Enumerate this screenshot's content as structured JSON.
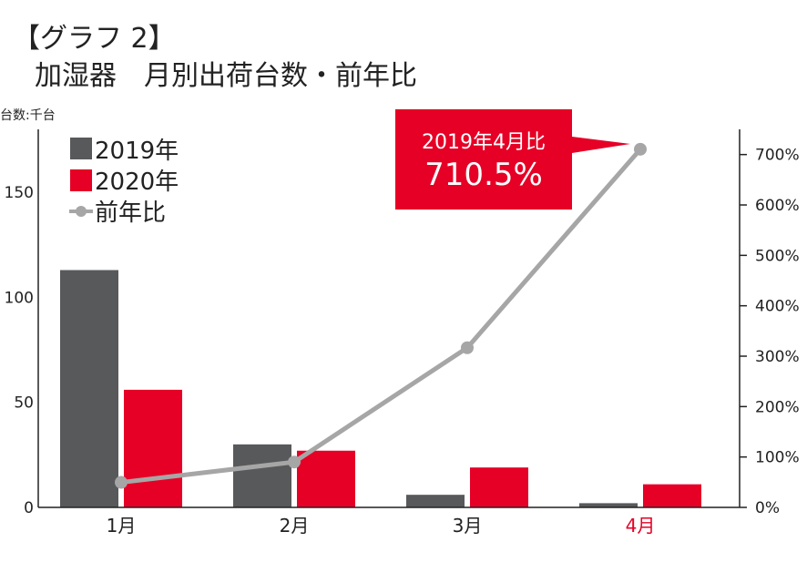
{
  "title_line1": "【グラフ 2】",
  "title_line2": "加湿器　月別出荷台数・前年比",
  "unit_label": "台数:千台",
  "colors": {
    "series_2019": "#58595b",
    "series_2020": "#e60026",
    "ratio_line": "#a6a6a6",
    "highlight_text": "#e60026",
    "callout_bg": "#e60026"
  },
  "callout": {
    "sub": "2019年4月比",
    "main": "710.5%"
  },
  "chart_data": {
    "type": "bar",
    "categories": [
      "1月",
      "2月",
      "3月",
      "4月"
    ],
    "highlight_category_index": 3,
    "series": [
      {
        "name": "2019年",
        "values": [
          113,
          30,
          6,
          2
        ]
      },
      {
        "name": "2020年",
        "values": [
          56,
          27,
          19,
          11
        ]
      }
    ],
    "line_series": {
      "name": "前年比",
      "values": [
        49.6,
        90,
        316.7,
        710.5
      ],
      "axis": "right"
    },
    "ylim": [
      0,
      180
    ],
    "y_ticks": [
      "0",
      "50",
      "100",
      "150"
    ],
    "y2lim": [
      0,
      750
    ],
    "y2_ticks": [
      "0%",
      "100%",
      "200%",
      "300%",
      "400%",
      "500%",
      "600%",
      "700%"
    ],
    "legend_position": "top-left",
    "grid": false
  }
}
